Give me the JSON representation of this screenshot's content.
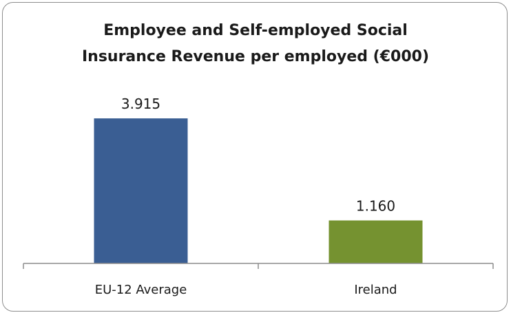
{
  "chart_data": {
    "type": "bar",
    "title_lines": [
      "Employee and Self-employed Social",
      "Insurance Revenue per employed (€000)"
    ],
    "categories": [
      "EU-12 Average",
      "Ireland"
    ],
    "values": [
      3.915,
      1.16
    ],
    "data_labels": [
      "3.915",
      "1.160"
    ],
    "bar_colors": [
      "#3a5e93",
      "#759230"
    ],
    "ylim": [
      0,
      4.4
    ],
    "grid": false,
    "legend": "none"
  }
}
